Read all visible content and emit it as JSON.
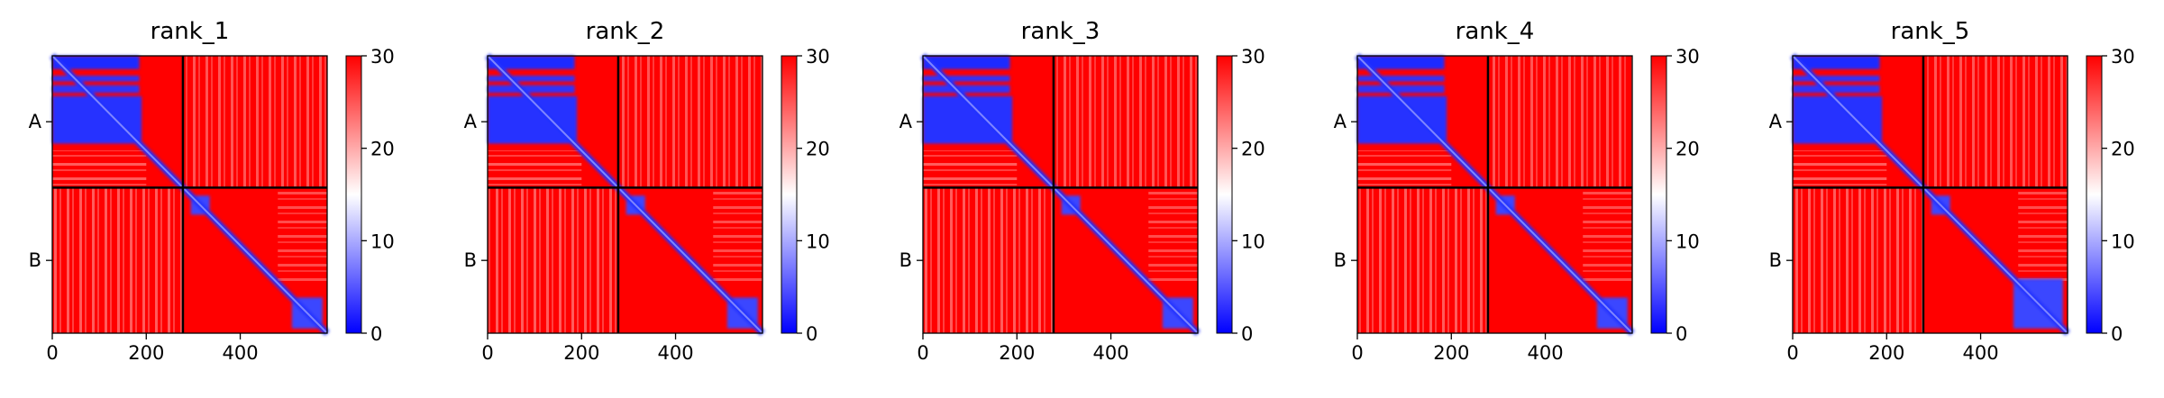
{
  "chart_data": [
    {
      "type": "heatmap",
      "title": "rank_1",
      "xticks": [
        0,
        200,
        400
      ],
      "x_range": [
        0,
        585
      ],
      "y_categories": [
        "A",
        "B"
      ],
      "chain_boundary": 278,
      "colorbar": {
        "min": 0,
        "max": 30,
        "ticks": [
          0,
          10,
          20,
          30
        ],
        "colors": [
          "#0000ff",
          "#ffffff",
          "#ff0000"
        ]
      }
    },
    {
      "type": "heatmap",
      "title": "rank_2",
      "xticks": [
        0,
        200,
        400
      ],
      "x_range": [
        0,
        585
      ],
      "y_categories": [
        "A",
        "B"
      ],
      "chain_boundary": 278,
      "colorbar": {
        "min": 0,
        "max": 30,
        "ticks": [
          0,
          10,
          20,
          30
        ],
        "colors": [
          "#0000ff",
          "#ffffff",
          "#ff0000"
        ]
      }
    },
    {
      "type": "heatmap",
      "title": "rank_3",
      "xticks": [
        0,
        200,
        400
      ],
      "x_range": [
        0,
        585
      ],
      "y_categories": [
        "A",
        "B"
      ],
      "chain_boundary": 278,
      "colorbar": {
        "min": 0,
        "max": 30,
        "ticks": [
          0,
          10,
          20,
          30
        ],
        "colors": [
          "#0000ff",
          "#ffffff",
          "#ff0000"
        ]
      }
    },
    {
      "type": "heatmap",
      "title": "rank_4",
      "xticks": [
        0,
        200,
        400
      ],
      "x_range": [
        0,
        585
      ],
      "y_categories": [
        "A",
        "B"
      ],
      "chain_boundary": 278,
      "colorbar": {
        "min": 0,
        "max": 30,
        "ticks": [
          0,
          10,
          20,
          30
        ],
        "colors": [
          "#0000ff",
          "#ffffff",
          "#ff0000"
        ]
      }
    },
    {
      "type": "heatmap",
      "title": "rank_5",
      "xticks": [
        0,
        200,
        400
      ],
      "x_range": [
        0,
        585
      ],
      "y_categories": [
        "A",
        "B"
      ],
      "chain_boundary": 278,
      "colorbar": {
        "min": 0,
        "max": 30,
        "ticks": [
          0,
          10,
          20,
          30
        ],
        "colors": [
          "#0000ff",
          "#ffffff",
          "#ff0000"
        ]
      }
    }
  ]
}
